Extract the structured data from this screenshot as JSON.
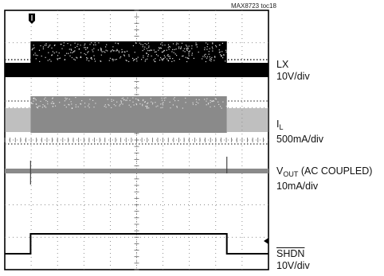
{
  "figure_ref": "MAX8723 toc18",
  "chart_data": {
    "type": "line",
    "title": "",
    "xlabel": "",
    "ylabel": "",
    "grid": true,
    "divisions": {
      "x": 10,
      "y": 8
    },
    "channels": [
      {
        "name_main": "LX",
        "name_sub": "",
        "name_suffix": "",
        "name_overline": false,
        "scale": "10V/div"
      },
      {
        "name_main": "I",
        "name_sub": "L",
        "name_suffix": "",
        "name_overline": false,
        "scale": "500mA/div"
      },
      {
        "name_main": "V",
        "name_sub": "OUT",
        "name_suffix": " (AC COUPLED)",
        "name_overline": false,
        "scale": "10mA/div"
      },
      {
        "name_main": "SHDN",
        "name_sub": "",
        "name_suffix": "",
        "name_overline": true,
        "scale": "10V/div"
      }
    ],
    "shdn_trace": {
      "x": [
        0,
        1.3,
        1.3,
        11.2,
        11.2,
        13.3
      ],
      "y": [
        0,
        0,
        1,
        1,
        0,
        0
      ]
    },
    "switching_interval_div": [
      1.3,
      11.2
    ],
    "colors": {
      "trace_dark": "#000000",
      "trace_gray": "#8a8a8a",
      "grid": "#666666"
    }
  }
}
